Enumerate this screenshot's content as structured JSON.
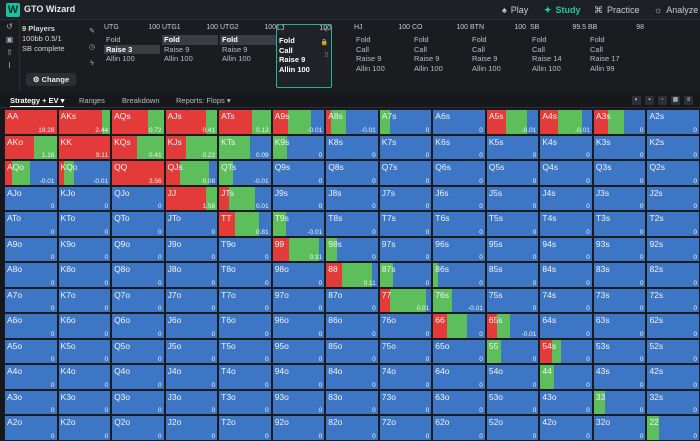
{
  "app": {
    "title": "GTO Wizard",
    "logo": "W"
  },
  "nav": [
    {
      "label": "Play",
      "icon": "spade-icon",
      "glyph": "♠",
      "active": false
    },
    {
      "label": "Study",
      "icon": "graduation-cap-icon",
      "glyph": "✦",
      "active": true
    },
    {
      "label": "Practice",
      "icon": "gamepad-icon",
      "glyph": "⌘",
      "active": false
    },
    {
      "label": "Analyze",
      "icon": "bulb-icon",
      "glyph": "☼",
      "active": false
    }
  ],
  "colors": {
    "raise": "#e33a3a",
    "call": "#5cbf5c",
    "fold": "#3d76c4",
    "accent": "#19c2a5"
  },
  "game": {
    "players": "9 Players",
    "stack": "100bb 0.5/1",
    "status": "SB complete",
    "change_label": "Change"
  },
  "positions": [
    {
      "name": "UTG",
      "stack": "100",
      "actions": [
        "Fold",
        "Raise 3",
        "Allin 100"
      ],
      "selected": 1,
      "active": false
    },
    {
      "name": "UTG1",
      "stack": "100",
      "actions": [
        "Fold",
        "Raise 9",
        "Allin 100"
      ],
      "selected": 0,
      "active": false
    },
    {
      "name": "UTG2",
      "stack": "100",
      "actions": [
        "Fold",
        "Raise 9",
        "Allin 100"
      ],
      "selected": 0,
      "active": false
    },
    {
      "name": "LJ",
      "stack": "100",
      "actions": [
        "Fold",
        "Call",
        "Raise 9",
        "Allin 100"
      ],
      "selected": -1,
      "active": true
    },
    {
      "name": "HJ",
      "stack": "100",
      "actions": [
        "Fold",
        "Call",
        "Raise 9",
        "Allin 100"
      ],
      "selected": -1,
      "active": false
    },
    {
      "name": "CO",
      "stack": "100",
      "actions": [
        "Fold",
        "Call",
        "Raise 9",
        "Allin 100"
      ],
      "selected": -1,
      "active": false
    },
    {
      "name": "BTN",
      "stack": "100",
      "actions": [
        "Fold",
        "Call",
        "Raise 9",
        "Allin 100"
      ],
      "selected": -1,
      "active": false
    },
    {
      "name": "SB",
      "stack": "99.5",
      "actions": [
        "Fold",
        "Call",
        "Raise 14",
        "Allin 100"
      ],
      "selected": -1,
      "active": false
    },
    {
      "name": "BB",
      "stack": "98",
      "actions": [
        "Fold",
        "Call",
        "Raise 17",
        "Allin 99"
      ],
      "selected": -1,
      "active": false
    }
  ],
  "tabs": [
    {
      "label": "Strategy + EV ▾",
      "active": true
    },
    {
      "label": "Ranges",
      "active": false
    },
    {
      "label": "Breakdown",
      "active": false
    },
    {
      "label": "Reports: Flops ▾",
      "active": false
    }
  ],
  "grid": [
    [
      {
        "h": "AA",
        "r": 100,
        "c": 0,
        "ev": "19.28"
      },
      {
        "h": "AKs",
        "r": 84,
        "c": 16,
        "ev": "2.44"
      },
      {
        "h": "AQs",
        "r": 70,
        "c": 30,
        "ev": "0.72"
      },
      {
        "h": "AJs",
        "r": 78,
        "c": 22,
        "ev": "0.41"
      },
      {
        "h": "ATs",
        "r": 64,
        "c": 36,
        "ev": "0.13"
      },
      {
        "h": "A9s",
        "r": 30,
        "c": 45,
        "ev": "-0.01"
      },
      {
        "h": "A8s",
        "r": 10,
        "c": 28,
        "ev": "-0.01"
      },
      {
        "h": "A7s",
        "r": 0,
        "c": 20,
        "ev": "0"
      },
      {
        "h": "A6s",
        "r": 0,
        "c": 0,
        "ev": "0"
      },
      {
        "h": "A5s",
        "r": 38,
        "c": 40,
        "ev": "-0.01"
      },
      {
        "h": "A4s",
        "r": 35,
        "c": 45,
        "ev": "-0.01"
      },
      {
        "h": "A3s",
        "r": 28,
        "c": 30,
        "ev": "0"
      },
      {
        "h": "A2s",
        "r": 0,
        "c": 0,
        "ev": "0"
      }
    ],
    [
      {
        "h": "AKo",
        "r": 56,
        "c": 44,
        "ev": "1.16"
      },
      {
        "h": "KK",
        "r": 100,
        "c": 0,
        "ev": "9.11"
      },
      {
        "h": "KQs",
        "r": 48,
        "c": 52,
        "ev": "0.41"
      },
      {
        "h": "KJs",
        "r": 40,
        "c": 60,
        "ev": "0.22"
      },
      {
        "h": "KTs",
        "r": 0,
        "c": 60,
        "ev": "0.09"
      },
      {
        "h": "K9s",
        "r": 0,
        "c": 28,
        "ev": "0"
      },
      {
        "h": "K8s",
        "r": 0,
        "c": 0,
        "ev": "0"
      },
      {
        "h": "K7s",
        "r": 0,
        "c": 0,
        "ev": "0"
      },
      {
        "h": "K6s",
        "r": 0,
        "c": 0,
        "ev": "0"
      },
      {
        "h": "K5s",
        "r": 0,
        "c": 0,
        "ev": "0"
      },
      {
        "h": "K4s",
        "r": 0,
        "c": 0,
        "ev": "0"
      },
      {
        "h": "K3s",
        "r": 0,
        "c": 0,
        "ev": "0"
      },
      {
        "h": "K2s",
        "r": 0,
        "c": 0,
        "ev": "0"
      }
    ],
    [
      {
        "h": "AQo",
        "r": 14,
        "c": 34,
        "ev": "-0.01"
      },
      {
        "h": "KQo",
        "r": 10,
        "c": 20,
        "ev": "-0.01"
      },
      {
        "h": "QQ",
        "r": 100,
        "c": 0,
        "ev": "3.56"
      },
      {
        "h": "QJs",
        "r": 28,
        "c": 56,
        "ev": "0.08"
      },
      {
        "h": "QTs",
        "r": 0,
        "c": 26,
        "ev": "-0.01"
      },
      {
        "h": "Q9s",
        "r": 0,
        "c": 0,
        "ev": "0"
      },
      {
        "h": "Q8s",
        "r": 0,
        "c": 0,
        "ev": "0"
      },
      {
        "h": "Q7s",
        "r": 0,
        "c": 0,
        "ev": "0"
      },
      {
        "h": "Q6s",
        "r": 0,
        "c": 0,
        "ev": "0"
      },
      {
        "h": "Q5s",
        "r": 0,
        "c": 0,
        "ev": "0"
      },
      {
        "h": "Q4s",
        "r": 0,
        "c": 0,
        "ev": "0"
      },
      {
        "h": "Q3s",
        "r": 0,
        "c": 0,
        "ev": "0"
      },
      {
        "h": "Q2s",
        "r": 0,
        "c": 0,
        "ev": "0"
      }
    ],
    [
      {
        "h": "AJo",
        "r": 0,
        "c": 0,
        "ev": "0"
      },
      {
        "h": "KJo",
        "r": 0,
        "c": 0,
        "ev": "0"
      },
      {
        "h": "QJo",
        "r": 0,
        "c": 0,
        "ev": "0"
      },
      {
        "h": "JJ",
        "r": 78,
        "c": 22,
        "ev": "1.58"
      },
      {
        "h": "JTs",
        "r": 20,
        "c": 50,
        "ev": "0.01"
      },
      {
        "h": "J9s",
        "r": 0,
        "c": 0,
        "ev": "0"
      },
      {
        "h": "J8s",
        "r": 0,
        "c": 0,
        "ev": "0"
      },
      {
        "h": "J7s",
        "r": 0,
        "c": 0,
        "ev": "0"
      },
      {
        "h": "J6s",
        "r": 0,
        "c": 0,
        "ev": "0"
      },
      {
        "h": "J5s",
        "r": 0,
        "c": 0,
        "ev": "0"
      },
      {
        "h": "J4s",
        "r": 0,
        "c": 0,
        "ev": "0"
      },
      {
        "h": "J3s",
        "r": 0,
        "c": 0,
        "ev": "0"
      },
      {
        "h": "J2s",
        "r": 0,
        "c": 0,
        "ev": "0"
      }
    ],
    [
      {
        "h": "ATo",
        "r": 0,
        "c": 0,
        "ev": "0"
      },
      {
        "h": "KTo",
        "r": 0,
        "c": 0,
        "ev": "0"
      },
      {
        "h": "QTo",
        "r": 0,
        "c": 0,
        "ev": "0"
      },
      {
        "h": "JTo",
        "r": 0,
        "c": 0,
        "ev": "0"
      },
      {
        "h": "TT",
        "r": 30,
        "c": 48,
        "ev": "0.81"
      },
      {
        "h": "T9s",
        "r": 0,
        "c": 25,
        "ev": "-0.01"
      },
      {
        "h": "T8s",
        "r": 0,
        "c": 0,
        "ev": "0"
      },
      {
        "h": "T7s",
        "r": 0,
        "c": 0,
        "ev": "0"
      },
      {
        "h": "T6s",
        "r": 0,
        "c": 0,
        "ev": "0"
      },
      {
        "h": "T5s",
        "r": 0,
        "c": 0,
        "ev": "0"
      },
      {
        "h": "T4s",
        "r": 0,
        "c": 0,
        "ev": "0"
      },
      {
        "h": "T3s",
        "r": 0,
        "c": 0,
        "ev": "0"
      },
      {
        "h": "T2s",
        "r": 0,
        "c": 0,
        "ev": "0"
      }
    ],
    [
      {
        "h": "A9o",
        "r": 0,
        "c": 0,
        "ev": "0"
      },
      {
        "h": "K9o",
        "r": 0,
        "c": 0,
        "ev": "0"
      },
      {
        "h": "Q9o",
        "r": 0,
        "c": 0,
        "ev": "0"
      },
      {
        "h": "J9o",
        "r": 0,
        "c": 0,
        "ev": "0"
      },
      {
        "h": "T9o",
        "r": 0,
        "c": 0,
        "ev": "0"
      },
      {
        "h": "99",
        "r": 32,
        "c": 58,
        "ev": "0.31"
      },
      {
        "h": "98s",
        "r": 0,
        "c": 20,
        "ev": "0"
      },
      {
        "h": "97s",
        "r": 0,
        "c": 0,
        "ev": "0"
      },
      {
        "h": "96s",
        "r": 0,
        "c": 0,
        "ev": "0"
      },
      {
        "h": "95s",
        "r": 0,
        "c": 0,
        "ev": "0"
      },
      {
        "h": "94s",
        "r": 0,
        "c": 0,
        "ev": "0"
      },
      {
        "h": "93s",
        "r": 0,
        "c": 0,
        "ev": "0"
      },
      {
        "h": "92s",
        "r": 0,
        "c": 0,
        "ev": "0"
      }
    ],
    [
      {
        "h": "A8o",
        "r": 0,
        "c": 0,
        "ev": "0"
      },
      {
        "h": "K8o",
        "r": 0,
        "c": 0,
        "ev": "0"
      },
      {
        "h": "Q8o",
        "r": 0,
        "c": 0,
        "ev": "0"
      },
      {
        "h": "J8o",
        "r": 0,
        "c": 0,
        "ev": "0"
      },
      {
        "h": "T8o",
        "r": 0,
        "c": 0,
        "ev": "0"
      },
      {
        "h": "98o",
        "r": 0,
        "c": 0,
        "ev": "0"
      },
      {
        "h": "88",
        "r": 30,
        "c": 58,
        "ev": "0.11"
      },
      {
        "h": "87s",
        "r": 0,
        "c": 25,
        "ev": "0"
      },
      {
        "h": "86s",
        "r": 0,
        "c": 10,
        "ev": "0"
      },
      {
        "h": "85s",
        "r": 0,
        "c": 0,
        "ev": "0"
      },
      {
        "h": "84s",
        "r": 0,
        "c": 0,
        "ev": "0"
      },
      {
        "h": "83s",
        "r": 0,
        "c": 0,
        "ev": "0"
      },
      {
        "h": "82s",
        "r": 0,
        "c": 0,
        "ev": "0"
      }
    ],
    [
      {
        "h": "A7o",
        "r": 0,
        "c": 0,
        "ev": "0"
      },
      {
        "h": "K7o",
        "r": 0,
        "c": 0,
        "ev": "0"
      },
      {
        "h": "Q7o",
        "r": 0,
        "c": 0,
        "ev": "0"
      },
      {
        "h": "J7o",
        "r": 0,
        "c": 0,
        "ev": "0"
      },
      {
        "h": "T7o",
        "r": 0,
        "c": 0,
        "ev": "0"
      },
      {
        "h": "97o",
        "r": 0,
        "c": 0,
        "ev": "0"
      },
      {
        "h": "87o",
        "r": 0,
        "c": 0,
        "ev": "0"
      },
      {
        "h": "77",
        "r": 20,
        "c": 70,
        "ev": "0.01"
      },
      {
        "h": "76s",
        "r": 0,
        "c": 36,
        "ev": "-0.01"
      },
      {
        "h": "75s",
        "r": 0,
        "c": 0,
        "ev": "0"
      },
      {
        "h": "74s",
        "r": 0,
        "c": 0,
        "ev": "0"
      },
      {
        "h": "73s",
        "r": 0,
        "c": 0,
        "ev": "0"
      },
      {
        "h": "72s",
        "r": 0,
        "c": 0,
        "ev": "0"
      }
    ],
    [
      {
        "h": "A6o",
        "r": 0,
        "c": 0,
        "ev": "0"
      },
      {
        "h": "K6o",
        "r": 0,
        "c": 0,
        "ev": "0"
      },
      {
        "h": "Q6o",
        "r": 0,
        "c": 0,
        "ev": "0"
      },
      {
        "h": "J6o",
        "r": 0,
        "c": 0,
        "ev": "0"
      },
      {
        "h": "T6o",
        "r": 0,
        "c": 0,
        "ev": "0"
      },
      {
        "h": "96o",
        "r": 0,
        "c": 0,
        "ev": "0"
      },
      {
        "h": "86o",
        "r": 0,
        "c": 0,
        "ev": "0"
      },
      {
        "h": "76o",
        "r": 0,
        "c": 0,
        "ev": "0"
      },
      {
        "h": "66",
        "r": 26,
        "c": 40,
        "ev": "0"
      },
      {
        "h": "65s",
        "r": 20,
        "c": 25,
        "ev": "-0.01"
      },
      {
        "h": "64s",
        "r": 0,
        "c": 0,
        "ev": "0"
      },
      {
        "h": "63s",
        "r": 0,
        "c": 0,
        "ev": "0"
      },
      {
        "h": "62s",
        "r": 0,
        "c": 0,
        "ev": "0"
      }
    ],
    [
      {
        "h": "A5o",
        "r": 0,
        "c": 0,
        "ev": "0"
      },
      {
        "h": "K5o",
        "r": 0,
        "c": 0,
        "ev": "0"
      },
      {
        "h": "Q5o",
        "r": 0,
        "c": 0,
        "ev": "0"
      },
      {
        "h": "J5o",
        "r": 0,
        "c": 0,
        "ev": "0"
      },
      {
        "h": "T5o",
        "r": 0,
        "c": 0,
        "ev": "0"
      },
      {
        "h": "95o",
        "r": 0,
        "c": 0,
        "ev": "0"
      },
      {
        "h": "85o",
        "r": 0,
        "c": 0,
        "ev": "0"
      },
      {
        "h": "75o",
        "r": 0,
        "c": 0,
        "ev": "0"
      },
      {
        "h": "65o",
        "r": 0,
        "c": 0,
        "ev": "0"
      },
      {
        "h": "55",
        "r": 0,
        "c": 28,
        "ev": "0"
      },
      {
        "h": "54s",
        "r": 22,
        "c": 18,
        "ev": "0"
      },
      {
        "h": "53s",
        "r": 0,
        "c": 0,
        "ev": "0"
      },
      {
        "h": "52s",
        "r": 0,
        "c": 0,
        "ev": "0"
      }
    ],
    [
      {
        "h": "A4o",
        "r": 0,
        "c": 0,
        "ev": "0"
      },
      {
        "h": "K4o",
        "r": 0,
        "c": 0,
        "ev": "0"
      },
      {
        "h": "Q4o",
        "r": 0,
        "c": 0,
        "ev": "0"
      },
      {
        "h": "J4o",
        "r": 0,
        "c": 0,
        "ev": "0"
      },
      {
        "h": "T4o",
        "r": 0,
        "c": 0,
        "ev": "0"
      },
      {
        "h": "94o",
        "r": 0,
        "c": 0,
        "ev": "0"
      },
      {
        "h": "84o",
        "r": 0,
        "c": 0,
        "ev": "0"
      },
      {
        "h": "74o",
        "r": 0,
        "c": 0,
        "ev": "0"
      },
      {
        "h": "64o",
        "r": 0,
        "c": 0,
        "ev": "0"
      },
      {
        "h": "54o",
        "r": 0,
        "c": 0,
        "ev": "0"
      },
      {
        "h": "44",
        "r": 0,
        "c": 26,
        "ev": "0"
      },
      {
        "h": "43s",
        "r": 0,
        "c": 0,
        "ev": "0"
      },
      {
        "h": "42s",
        "r": 0,
        "c": 0,
        "ev": "0"
      }
    ],
    [
      {
        "h": "A3o",
        "r": 0,
        "c": 0,
        "ev": "0"
      },
      {
        "h": "K3o",
        "r": 0,
        "c": 0,
        "ev": "0"
      },
      {
        "h": "Q3o",
        "r": 0,
        "c": 0,
        "ev": "0"
      },
      {
        "h": "J3o",
        "r": 0,
        "c": 0,
        "ev": "0"
      },
      {
        "h": "T3o",
        "r": 0,
        "c": 0,
        "ev": "0"
      },
      {
        "h": "93o",
        "r": 0,
        "c": 0,
        "ev": "0"
      },
      {
        "h": "83o",
        "r": 0,
        "c": 0,
        "ev": "0"
      },
      {
        "h": "73o",
        "r": 0,
        "c": 0,
        "ev": "0"
      },
      {
        "h": "63o",
        "r": 0,
        "c": 0,
        "ev": "0"
      },
      {
        "h": "53o",
        "r": 0,
        "c": 0,
        "ev": "0"
      },
      {
        "h": "43o",
        "r": 0,
        "c": 0,
        "ev": "0"
      },
      {
        "h": "33",
        "r": 0,
        "c": 22,
        "ev": "0"
      },
      {
        "h": "32s",
        "r": 0,
        "c": 0,
        "ev": "0"
      }
    ],
    [
      {
        "h": "A2o",
        "r": 0,
        "c": 0,
        "ev": "0"
      },
      {
        "h": "K2o",
        "r": 0,
        "c": 0,
        "ev": "0"
      },
      {
        "h": "Q2o",
        "r": 0,
        "c": 0,
        "ev": "0"
      },
      {
        "h": "J2o",
        "r": 0,
        "c": 0,
        "ev": "0"
      },
      {
        "h": "T2o",
        "r": 0,
        "c": 0,
        "ev": "0"
      },
      {
        "h": "92o",
        "r": 0,
        "c": 0,
        "ev": "0"
      },
      {
        "h": "82o",
        "r": 0,
        "c": 0,
        "ev": "0"
      },
      {
        "h": "72o",
        "r": 0,
        "c": 0,
        "ev": "0"
      },
      {
        "h": "62o",
        "r": 0,
        "c": 0,
        "ev": "0"
      },
      {
        "h": "52o",
        "r": 0,
        "c": 0,
        "ev": "0"
      },
      {
        "h": "42o",
        "r": 0,
        "c": 0,
        "ev": "0"
      },
      {
        "h": "32o",
        "r": 0,
        "c": 0,
        "ev": "0"
      },
      {
        "h": "22",
        "r": 0,
        "c": 22,
        "ev": "0"
      }
    ]
  ]
}
